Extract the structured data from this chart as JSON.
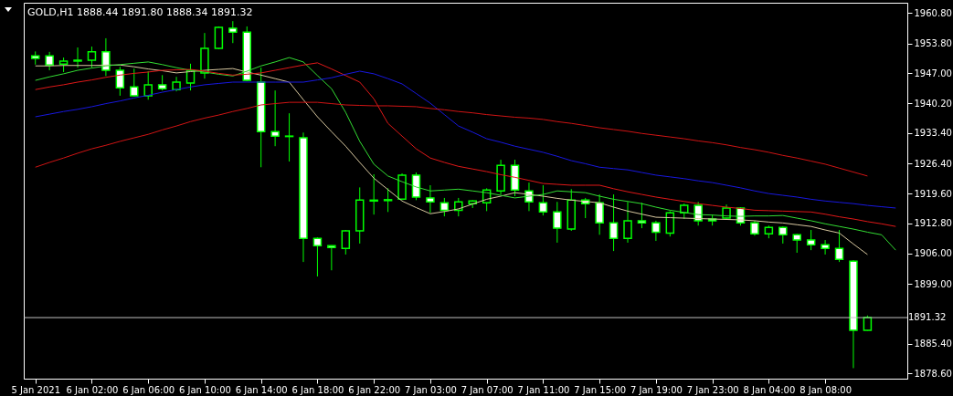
{
  "chart_data": {
    "type": "candlestick",
    "title": "GOLD,H1 1888.44 1891.80 1888.34 1891.32",
    "color": "#00ff00",
    "categories": [
      "5 Jan 2021",
      null,
      null,
      null,
      "6 Jan 02:00",
      null,
      null,
      null,
      "6 Jan 06:00",
      null,
      null,
      null,
      "6 Jan 10:00",
      null,
      null,
      null,
      "6 Jan 14:00",
      null,
      null,
      null,
      "6 Jan 18:00",
      null,
      null,
      null,
      "6 Jan 22:00",
      null,
      null,
      null,
      "7 Jan 03:00",
      null,
      null,
      null,
      "7 Jan 07:00",
      null,
      null,
      null,
      "7 Jan 11:00",
      null,
      null,
      null,
      "7 Jan 15:00",
      null,
      null,
      null,
      "7 Jan 19:00",
      null,
      null,
      null,
      "7 Jan 23:00",
      null,
      null,
      null,
      "8 Jan 04:00",
      null,
      null,
      null,
      "8 Jan 08:00",
      null,
      null,
      null,
      null,
      null
    ],
    "ohlc": [
      [
        1951.0,
        1952.0,
        1949.0,
        1950.4
      ],
      [
        1951.0,
        1951.9,
        1947.7,
        1948.9
      ],
      [
        1949.1,
        1950.6,
        1947.3,
        1949.8
      ],
      [
        1949.8,
        1952.9,
        1948.3,
        1950.0
      ],
      [
        1950.0,
        1953.1,
        1948.3,
        1951.9
      ],
      [
        1951.9,
        1955.0,
        1946.4,
        1947.7
      ],
      [
        1947.7,
        1948.5,
        1941.9,
        1943.7
      ],
      [
        1943.9,
        1948.1,
        1941.7,
        1941.9
      ],
      [
        1941.9,
        1947.5,
        1941.0,
        1944.4
      ],
      [
        1944.4,
        1946.6,
        1943.1,
        1943.5
      ],
      [
        1943.3,
        1946.2,
        1942.9,
        1945.0
      ],
      [
        1944.8,
        1949.2,
        1943.1,
        1947.7
      ],
      [
        1947.1,
        1956.2,
        1945.8,
        1952.7
      ],
      [
        1952.7,
        1957.7,
        1952.5,
        1957.5
      ],
      [
        1957.3,
        1958.9,
        1953.9,
        1956.4
      ],
      [
        1956.4,
        1957.7,
        1945.2,
        1945.4
      ],
      [
        1945.0,
        1948.3,
        1925.6,
        1933.7
      ],
      [
        1933.7,
        1943.1,
        1930.4,
        1932.7
      ],
      [
        1932.7,
        1937.9,
        1926.9,
        1932.6
      ],
      [
        1932.3,
        1933.5,
        1904.0,
        1909.4
      ],
      [
        1909.4,
        1909.6,
        1900.7,
        1907.7
      ],
      [
        1907.7,
        1907.8,
        1902.1,
        1907.3
      ],
      [
        1907.1,
        1911.3,
        1905.7,
        1911.1
      ],
      [
        1911.1,
        1921.0,
        1908.2,
        1918.1
      ],
      [
        1918.1,
        1924.0,
        1914.8,
        1917.9
      ],
      [
        1918.0,
        1920.8,
        1915.4,
        1918.2
      ],
      [
        1918.3,
        1924.2,
        1918.1,
        1923.8
      ],
      [
        1923.8,
        1924.4,
        1918.1,
        1918.8
      ],
      [
        1918.6,
        1921.5,
        1915.2,
        1917.7
      ],
      [
        1917.5,
        1918.6,
        1914.4,
        1915.8
      ],
      [
        1915.8,
        1918.6,
        1914.4,
        1917.7
      ],
      [
        1917.3,
        1918.1,
        1916.3,
        1917.9
      ],
      [
        1917.5,
        1920.8,
        1915.6,
        1920.4
      ],
      [
        1920.2,
        1927.3,
        1919.4,
        1926.0
      ],
      [
        1926.0,
        1927.3,
        1919.0,
        1920.4
      ],
      [
        1920.2,
        1922.1,
        1915.6,
        1917.7
      ],
      [
        1917.5,
        1921.5,
        1914.6,
        1915.4
      ],
      [
        1915.4,
        1917.7,
        1908.4,
        1911.7
      ],
      [
        1911.5,
        1920.6,
        1911.1,
        1918.1
      ],
      [
        1918.1,
        1918.6,
        1914.0,
        1917.3
      ],
      [
        1917.5,
        1919.4,
        1910.2,
        1912.9
      ],
      [
        1912.9,
        1919.4,
        1906.5,
        1909.4
      ],
      [
        1909.4,
        1917.7,
        1908.4,
        1913.4
      ],
      [
        1913.4,
        1917.5,
        1911.7,
        1912.9
      ],
      [
        1912.9,
        1913.4,
        1908.8,
        1910.8
      ],
      [
        1910.6,
        1915.6,
        1909.8,
        1915.2
      ],
      [
        1915.2,
        1917.3,
        1913.8,
        1916.9
      ],
      [
        1916.9,
        1917.7,
        1912.3,
        1913.4
      ],
      [
        1913.8,
        1914.8,
        1912.3,
        1913.4
      ],
      [
        1914.0,
        1917.1,
        1913.8,
        1916.3
      ],
      [
        1916.3,
        1916.5,
        1912.3,
        1912.9
      ],
      [
        1912.9,
        1913.4,
        1910.0,
        1910.4
      ],
      [
        1910.4,
        1912.3,
        1909.4,
        1911.9
      ],
      [
        1911.9,
        1912.1,
        1908.2,
        1910.2
      ],
      [
        1910.2,
        1910.4,
        1906.1,
        1909.0
      ],
      [
        1909.0,
        1911.3,
        1906.7,
        1907.9
      ],
      [
        1907.9,
        1909.0,
        1905.7,
        1907.1
      ],
      [
        1907.1,
        1911.3,
        1904.0,
        1904.6
      ],
      [
        1904.2,
        1904.4,
        1879.8,
        1888.44
      ],
      [
        1888.44,
        1891.8,
        1888.34,
        1891.32
      ],
      null,
      null
    ],
    "series": [
      {
        "type": "line",
        "color": "#d8c8a0",
        "values": [
          1948.7,
          1948.7,
          1948.8,
          1948.8,
          1948.8,
          1948.9,
          1948.9,
          1948.5,
          1948.0,
          1947.6,
          1947.1,
          1947.4,
          1947.7,
          1947.9,
          1948.1,
          1947.3,
          1946.6,
          1945.8,
          1945.0,
          1941.0,
          1937.1,
          1933.7,
          1930.4,
          1926.7,
          1923.1,
          1920.5,
          1917.9,
          1916.4,
          1915.0,
          1915.5,
          1916.1,
          1917.2,
          1918.3,
          1919.0,
          1919.8,
          1919.4,
          1919.0,
          1918.5,
          1918.1,
          1917.8,
          1917.5,
          1916.5,
          1915.6,
          1914.9,
          1914.2,
          1914.1,
          1914.0,
          1913.9,
          1913.8,
          1913.7,
          1913.6,
          1913.4,
          1913.1,
          1912.9,
          1912.5,
          1912.1,
          1911.3,
          1910.6,
          1908.1,
          1905.7,
          null,
          null
        ]
      },
      {
        "type": "line",
        "color": "#33dd33",
        "values": [
          1945.4,
          1946.2,
          1946.9,
          1947.7,
          1948.2,
          1948.7,
          1949.0,
          1949.3,
          1949.6,
          1949.0,
          1948.3,
          1947.7,
          1947.3,
          1946.8,
          1946.4,
          1947.5,
          1948.7,
          1949.6,
          1950.6,
          1949.6,
          1946.5,
          1943.5,
          1938.1,
          1931.5,
          1926.3,
          1923.6,
          1922.3,
          1921.1,
          1920.2,
          1920.4,
          1920.6,
          1920.2,
          1919.8,
          1919.2,
          1918.6,
          1919.0,
          1919.4,
          1920.2,
          1920.0,
          1919.8,
          1919.0,
          1918.3,
          1917.8,
          1917.3,
          1916.5,
          1915.8,
          1915.3,
          1914.8,
          1914.7,
          1914.5,
          1914.4,
          1914.5,
          1914.5,
          1914.6,
          1914.0,
          1913.4,
          1912.7,
          1912.1,
          1911.5,
          1910.8,
          1910.2,
          1906.7
        ]
      },
      {
        "type": "line",
        "color": "#e01818",
        "values": [
          1943.3,
          1943.9,
          1944.4,
          1945.0,
          1945.5,
          1946.1,
          1946.6,
          1947.0,
          1947.3,
          1947.7,
          1947.8,
          1947.9,
          1947.5,
          1947.0,
          1946.6,
          1946.8,
          1947.1,
          1947.7,
          1948.3,
          1948.9,
          1949.4,
          1948.0,
          1946.5,
          1945.0,
          1941.2,
          1935.6,
          1932.7,
          1929.8,
          1927.7,
          1926.7,
          1925.8,
          1925.2,
          1924.6,
          1923.9,
          1923.3,
          1922.6,
          1921.9,
          1921.7,
          1921.5,
          1921.5,
          1921.5,
          1920.7,
          1920.0,
          1919.4,
          1918.8,
          1918.3,
          1917.8,
          1917.3,
          1916.9,
          1916.5,
          1916.2,
          1915.8,
          1915.7,
          1915.6,
          1915.5,
          1915.4,
          1914.9,
          1914.3,
          1913.8,
          1913.2,
          1912.7,
          1912.1
        ]
      },
      {
        "type": "line",
        "color": "#1818e0",
        "values": [
          1937.1,
          1937.7,
          1938.3,
          1938.8,
          1939.4,
          1940.1,
          1940.7,
          1941.4,
          1942.0,
          1942.7,
          1943.3,
          1943.9,
          1944.4,
          1944.7,
          1945.0,
          1945.0,
          1945.0,
          1945.0,
          1945.0,
          1945.0,
          1945.5,
          1946.0,
          1946.8,
          1947.5,
          1946.9,
          1945.8,
          1944.6,
          1942.4,
          1940.2,
          1937.6,
          1935.0,
          1933.6,
          1932.1,
          1931.3,
          1930.4,
          1929.7,
          1929.0,
          1928.1,
          1927.1,
          1926.4,
          1925.6,
          1925.3,
          1925.0,
          1924.4,
          1923.8,
          1923.4,
          1923.0,
          1922.5,
          1922.1,
          1921.5,
          1920.9,
          1920.2,
          1919.6,
          1919.2,
          1918.8,
          1918.3,
          1917.9,
          1917.6,
          1917.3,
          1916.9,
          1916.6,
          1916.3
        ]
      },
      {
        "type": "line",
        "color": "#d01414",
        "values": [
          1925.6,
          1926.7,
          1927.7,
          1928.8,
          1929.8,
          1930.6,
          1931.5,
          1932.3,
          1933.1,
          1934.1,
          1935.0,
          1936.0,
          1936.8,
          1937.5,
          1938.3,
          1939.0,
          1939.8,
          1940.1,
          1940.4,
          1940.4,
          1940.4,
          1940.1,
          1939.8,
          1939.7,
          1939.6,
          1939.6,
          1939.5,
          1939.4,
          1939.0,
          1938.7,
          1938.3,
          1938.0,
          1937.6,
          1937.3,
          1937.0,
          1936.8,
          1936.5,
          1936.0,
          1935.6,
          1935.1,
          1934.6,
          1934.2,
          1933.8,
          1933.3,
          1932.9,
          1932.5,
          1932.1,
          1931.6,
          1931.2,
          1930.7,
          1930.1,
          1929.6,
          1929.0,
          1928.3,
          1927.7,
          1927.0,
          1926.3,
          1925.4,
          1924.5,
          1923.6,
          null,
          null
        ]
      }
    ],
    "ylim": [
      1877.4,
      1963.1
    ],
    "yticks": [
      {
        "value": 1960.8,
        "label": "1960.80"
      },
      {
        "value": 1953.8,
        "label": "1953.80"
      },
      {
        "value": 1947,
        "label": "1947.00"
      },
      {
        "value": 1940.2,
        "label": "1940.20"
      },
      {
        "value": 1933.4,
        "label": "1933.40"
      },
      {
        "value": 1926.4,
        "label": "1926.40"
      },
      {
        "value": 1919.6,
        "label": "1919.60"
      },
      {
        "value": 1912.8,
        "label": "1912.80"
      },
      {
        "value": 1906,
        "label": "1906.00"
      },
      {
        "value": 1899,
        "label": "1899.00"
      },
      {
        "value": 1885.4,
        "label": "1885.40"
      },
      {
        "value": 1878.6,
        "label": "1878.60"
      }
    ],
    "ref_lines": [
      {
        "axis": "y",
        "value": 1891.32,
        "label": "1891.32",
        "color": "#c0c0c0"
      }
    ],
    "grid": false
  }
}
